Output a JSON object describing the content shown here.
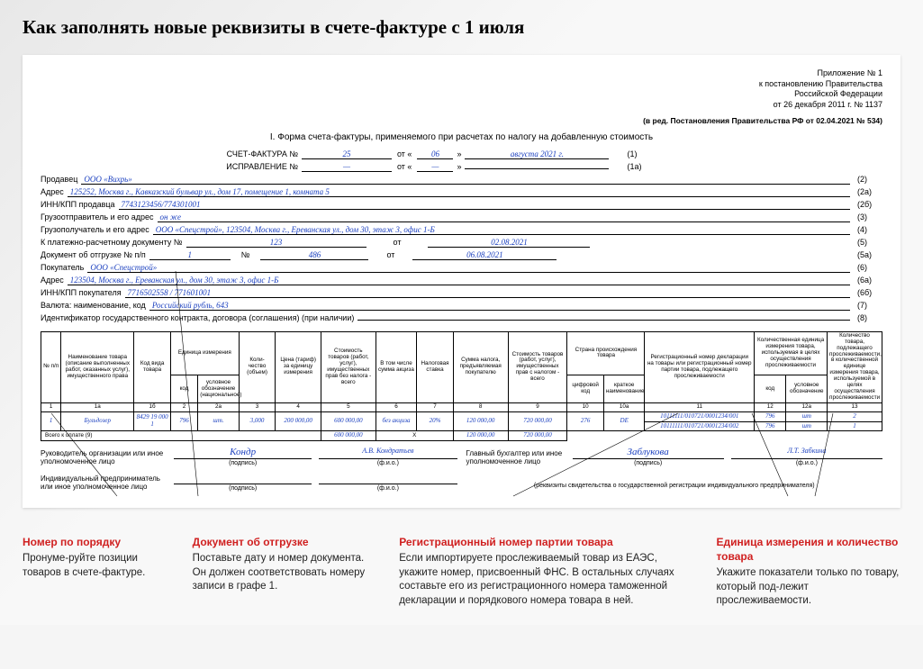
{
  "title": "Как заполнять новые реквизиты в счете-фактуре с 1 июля",
  "appendix": {
    "l1": "Приложение № 1",
    "l2": "к постановлению Правительства",
    "l3": "Российской Федерации",
    "l4": "от 26 декабря 2011 г. № 1137"
  },
  "edition": "(в ред. Постановления Правительства РФ от 02.04.2021 № 534)",
  "form_title": "I. Форма счета-фактуры, применяемого при расчетах по налогу на добавленную стоимость",
  "header": {
    "invoice_label": "СЧЕТ-ФАКТУРА  №",
    "invoice_no": "25",
    "from": "от «",
    "day": "06",
    "mid": "»",
    "month_year": "августа 2021 г.",
    "n1": "(1)",
    "corr_label": "ИСПРАВЛЕНИЕ  №",
    "corr_no": "—",
    "corr_day": "—",
    "corr_my": "",
    "n1a": "(1a)"
  },
  "fields": [
    {
      "label": "Продавец",
      "val": "ООО «Вихрь»",
      "num": "(2)"
    },
    {
      "label": "Адрес",
      "val": "125252, Москва г., Кавказский бульвар ул., дом 17, помещение 1, комната 5",
      "num": "(2а)"
    },
    {
      "label": "ИНН/КПП продавца",
      "val": "7743123456/774301001",
      "num": "(2б)"
    },
    {
      "label": "Грузоотправитель и его адрес",
      "val": "он же",
      "num": "(3)"
    },
    {
      "label": "Грузополучатель и его адрес",
      "val": "ООО «Спецстрой», 123504, Москва г., Ереванская ул., дом 30, этаж 3, офис 1-Б",
      "num": "(4)"
    },
    {
      "label": "К платежно-расчетному документу №",
      "val": "",
      "num": "(5)",
      "pay_no": "123",
      "pay_date": "02.08.2021"
    },
    {
      "label": "Документ об отгрузке № п/п",
      "val": "",
      "num": "(5а)",
      "ship_pp": "1",
      "ship_no": "486",
      "ship_date": "06.08.2021"
    },
    {
      "label": "Покупатель",
      "val": "ООО «Спецстрой»",
      "num": "(6)"
    },
    {
      "label": "Адрес",
      "val": "123504, Москва г., Ереванская ул., дом 30, этаж 3, офис 1-Б",
      "num": "(6а)"
    },
    {
      "label": "ИНН/КПП покупателя",
      "val": "7716502558 / 771601001",
      "num": "(6б)"
    },
    {
      "label": "Валюта: наименование, код",
      "val": "Российский рубль, 643",
      "num": "(7)"
    },
    {
      "label": "Идентификатор государственного контракта, договора (соглашения) (при наличии)",
      "val": "",
      "num": "(8)"
    }
  ],
  "pay": {
    "from_lbl": "от"
  },
  "ship": {
    "no_lbl": "№",
    "from_lbl": "от"
  },
  "table": {
    "h": {
      "c1": "№ п/п",
      "c1a": "Наименование товара (описание выполненных работ, оказанных услуг), имущественного права",
      "c1b": "Код вида товара",
      "c2g": "Единица измерения",
      "c2": "код",
      "c2a": "условное обозначение (национальное)",
      "c3": "Коли-чество (объем)",
      "c4": "Цена (тариф) за единицу измерения",
      "c5": "Стоимость товаров (работ, услуг), имущественных прав без налога - всего",
      "c6": "В том числе сумма акциза",
      "c7": "Налоговая ставка",
      "c8": "Сумма налога, предъявляемая покупателю",
      "c9": "Стоимость товаров (работ, услуг), имущественных прав с налогом - всего",
      "c10g": "Страна происхождения товара",
      "c10": "цифровой код",
      "c10a": "краткое наименование",
      "c11": "Регистрационный номер декларации на товары или регистрационный номер партии товара, подлежащего прослеживаемости",
      "c12g": "Количественная единица измерения товара, используемая в целях осуществления прослеживаемости",
      "c12": "код",
      "c12a": "условное обозначение",
      "c13": "Количество товара, подлежащего прослеживаемости, в количественной единице измерения товара, используемой в целях осуществления прослеживаемости"
    },
    "nums": [
      "1",
      "1а",
      "1б",
      "2",
      "2а",
      "3",
      "4",
      "5",
      "6",
      "7",
      "8",
      "9",
      "10",
      "10а",
      "11",
      "12",
      "12а",
      "13"
    ],
    "row": {
      "n": "1",
      "name": "Бульдозер",
      "code": "8429 19 000 1",
      "u_code": "796",
      "u_name": "шт.",
      "qty": "3,000",
      "price": "200 000,00",
      "cost": "600 000,00",
      "excise": "без акциза",
      "rate": "20%",
      "tax": "120 000,00",
      "total": "720 000,00",
      "c_code": "276",
      "c_name": "DE",
      "reg1": "10111111/010721/0001234/001",
      "reg2": "10111111/010721/0001234/002",
      "u2_code": "796",
      "u2_name": "шт",
      "q1": "2",
      "q2": "1"
    },
    "totals_label": "Всего к оплате (9)",
    "t_cost": "600 000,00",
    "t_x": "Х",
    "t_tax": "120 000,00",
    "t_total": "720 000,00",
    "widths_pct": [
      2.2,
      8,
      4,
      3,
      4.5,
      4,
      5,
      6,
      4.5,
      4,
      6,
      6.5,
      4,
      4.5,
      12,
      3.5,
      4.5,
      6
    ]
  },
  "sigs": {
    "s1_lbl": "Руководитель организации или иное уполномоченное лицо",
    "s1_sign": "Кондр",
    "s1_name": "А.В. Кондратьев",
    "s2_lbl": "Главный бухгалтер или иное уполномоченное лицо",
    "s2_sign": "Заблукова",
    "s2_name": "Л.Т. Забкина",
    "s3_lbl": "Индивидуальный предприниматель или иное уполномоченное лицо",
    "cap_sign": "(подпись)",
    "cap_name": "(ф.и.о.)",
    "note": "(реквизиты свидетельства о государственной регистрации индивидуального предпринимателя)"
  },
  "callouts": [
    {
      "title": "Номер по порядку",
      "text": "Пронуме-руйте позиции товаров в счете-фактуре."
    },
    {
      "title": "Документ об отгрузке",
      "text": "Поставьте дату и номер документа. Он должен соответствовать номеру записи в графе 1."
    },
    {
      "title": "Регистрационный номер партии товара",
      "text": "Если импортируете прослеживаемый товар из ЕАЭС, укажите номер, присвоенный ФНС. В остальных случаях составьте его из регистрационного номера таможенной декларации и порядкового номера товара в ней."
    },
    {
      "title": "Единица измерения и количество товара",
      "text": "Укажите показатели только по товару, который под-лежит прослеживаемости."
    }
  ],
  "colors": {
    "blue": "#1a3fbf",
    "red": "#d02020",
    "bg": "#f5f5f5"
  }
}
